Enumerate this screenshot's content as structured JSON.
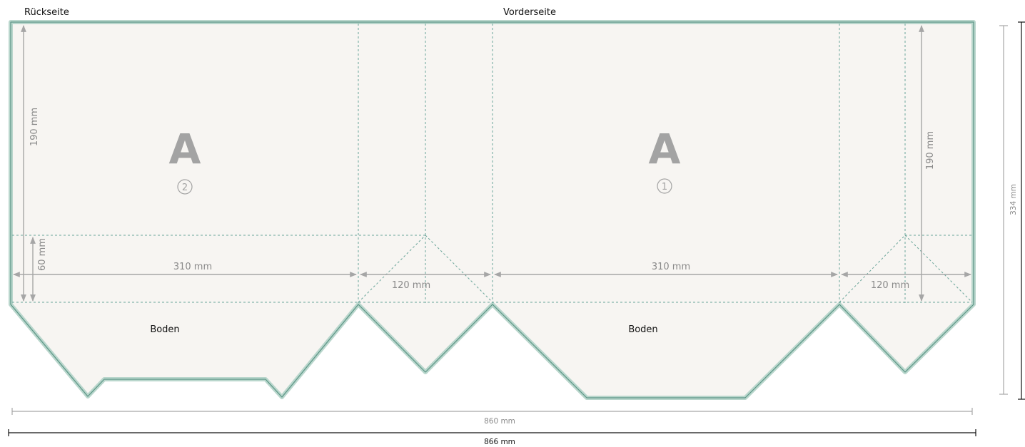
{
  "labels": {
    "back_side": "Rückseite",
    "front_side": "Vorderseite",
    "bottom_back": "Boden",
    "bottom_front": "Boden",
    "letter_back": "A",
    "letter_front": "A",
    "marker_back": "2",
    "marker_front": "1"
  },
  "dimensions": {
    "height_left": "190 mm",
    "height_right": "190 mm",
    "bottom_height": "60 mm",
    "width_back": "310 mm",
    "width_front": "310 mm",
    "side_1": "120 mm",
    "side_2": "120 mm",
    "total_height": "334 mm",
    "width_inner": "860 mm",
    "width_outer": "866 mm"
  },
  "colors": {
    "outline": "#b9d6cc",
    "edge": "#5b9585",
    "paper": "#f7f5f2",
    "fold": "#6aa59a"
  }
}
